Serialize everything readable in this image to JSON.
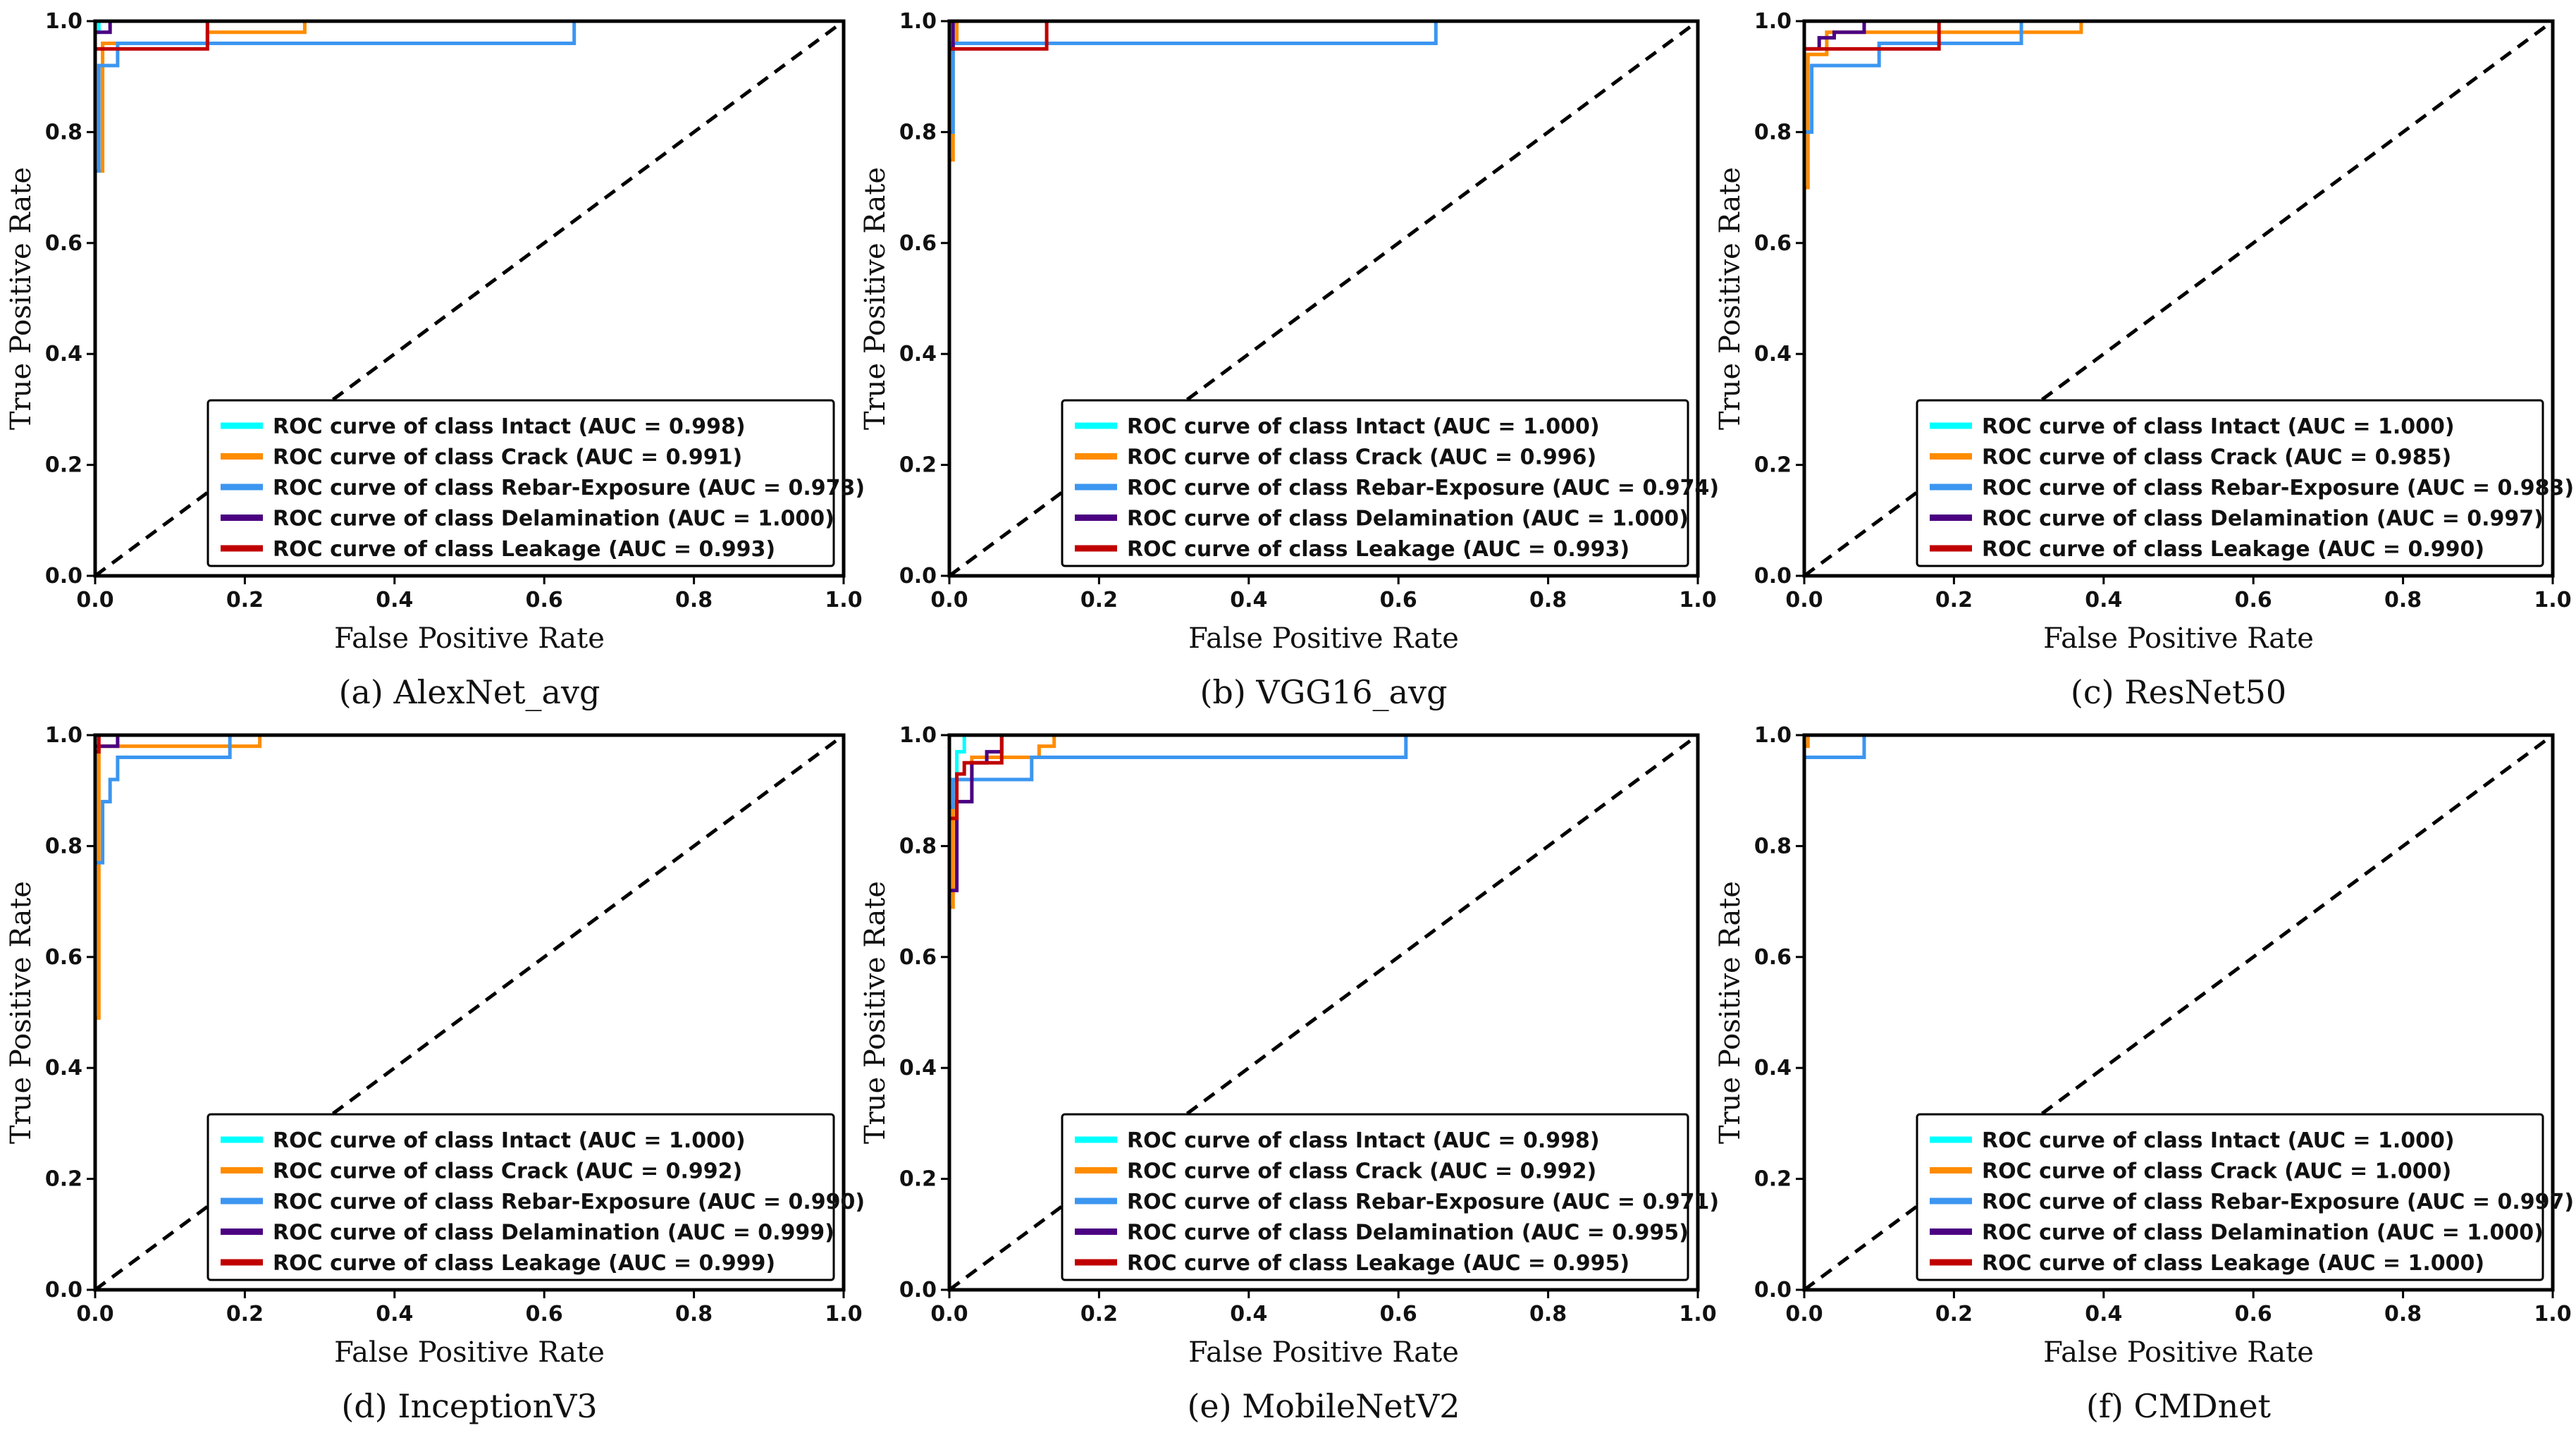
{
  "figure": {
    "class_colors": {
      "Intact": "#00FFFF",
      "Crack": "#FF8C00",
      "Rebar-Exposure": "#3C96F0",
      "Delamination": "#4B0082",
      "Leakage": "#C00000"
    },
    "legend_prefix": "ROC curve of class",
    "chance_line": {
      "color": "#000000",
      "style": "dashed",
      "x": [
        0,
        1
      ],
      "y": [
        0,
        1
      ]
    }
  },
  "chart_data": [
    {
      "type": "line",
      "caption": "(a) AlexNet_avg",
      "xlabel": "False Positive Rate",
      "ylabel": "True Positive Rate",
      "xlim": [
        0,
        1
      ],
      "ylim": [
        0,
        1
      ],
      "xticks": [
        "0.0",
        "0.2",
        "0.4",
        "0.6",
        "0.8",
        "1.0"
      ],
      "yticks": [
        "0.0",
        "0.2",
        "0.4",
        "0.6",
        "0.8",
        "1.0"
      ],
      "legend_position": "lower-right",
      "series": [
        {
          "name": "ROC curve of class Intact (AUC = 0.998)",
          "class": "Intact",
          "x": [
            0,
            0,
            0.005,
            0.005,
            1
          ],
          "y": [
            0,
            0.98,
            0.98,
            1,
            1
          ]
        },
        {
          "name": "ROC curve of class Crack (AUC = 0.991)",
          "class": "Crack",
          "x": [
            0,
            0,
            0.01,
            0.01,
            0.15,
            0.15,
            0.28,
            0.28,
            1
          ],
          "y": [
            0,
            0.73,
            0.73,
            0.96,
            0.96,
            0.98,
            0.98,
            1,
            1
          ]
        },
        {
          "name": "ROC curve of class Rebar-Exposure (AUC = 0.973)",
          "class": "Rebar-Exposure",
          "x": [
            0,
            0,
            0.005,
            0.005,
            0.03,
            0.03,
            0.64,
            0.64,
            1
          ],
          "y": [
            0,
            0.73,
            0.73,
            0.92,
            0.92,
            0.96,
            0.96,
            1,
            1
          ]
        },
        {
          "name": "ROC curve of class Delamination (AUC = 1.000)",
          "class": "Delamination",
          "x": [
            0,
            0,
            0.02,
            0.02,
            1
          ],
          "y": [
            0,
            0.98,
            0.98,
            1,
            1
          ]
        },
        {
          "name": "ROC curve of class Leakage (AUC = 0.993)",
          "class": "Leakage",
          "x": [
            0,
            0,
            0.15,
            0.15,
            1
          ],
          "y": [
            0,
            0.95,
            0.95,
            1,
            1
          ]
        }
      ]
    },
    {
      "type": "line",
      "caption": "(b) VGG16_avg",
      "xlabel": "False Positive Rate",
      "ylabel": "True Positive Rate",
      "xlim": [
        0,
        1
      ],
      "ylim": [
        0,
        1
      ],
      "xticks": [
        "0.0",
        "0.2",
        "0.4",
        "0.6",
        "0.8",
        "1.0"
      ],
      "yticks": [
        "0.0",
        "0.2",
        "0.4",
        "0.6",
        "0.8",
        "1.0"
      ],
      "legend_position": "lower-right",
      "series": [
        {
          "name": "ROC curve of class Intact (AUC = 1.000)",
          "class": "Intact",
          "x": [
            0,
            0,
            1
          ],
          "y": [
            0,
            1,
            1
          ]
        },
        {
          "name": "ROC curve of class Crack (AUC = 0.996)",
          "class": "Crack",
          "x": [
            0,
            0,
            0.005,
            0.005,
            0.01,
            0.01,
            1
          ],
          "y": [
            0,
            0.75,
            0.75,
            0.96,
            0.96,
            1,
            1
          ]
        },
        {
          "name": "ROC curve of class Rebar-Exposure (AUC = 0.974)",
          "class": "Rebar-Exposure",
          "x": [
            0,
            0,
            0.005,
            0.005,
            0.65,
            0.65,
            1
          ],
          "y": [
            0,
            0.8,
            0.8,
            0.96,
            0.96,
            1,
            1
          ]
        },
        {
          "name": "ROC curve of class Delamination (AUC = 1.000)",
          "class": "Delamination",
          "x": [
            0,
            0,
            0.005,
            0.005,
            0.065,
            0.065,
            1
          ],
          "y": [
            0,
            0.95,
            0.95,
            1,
            1,
            1,
            1
          ]
        },
        {
          "name": "ROC curve of class Leakage (AUC = 0.993)",
          "class": "Leakage",
          "x": [
            0,
            0,
            0.13,
            0.13,
            1
          ],
          "y": [
            0,
            0.95,
            0.95,
            1,
            1
          ]
        }
      ]
    },
    {
      "type": "line",
      "caption": "(c) ResNet50",
      "xlabel": "False Positive Rate",
      "ylabel": "True Positive Rate",
      "xlim": [
        0,
        1
      ],
      "ylim": [
        0,
        1
      ],
      "xticks": [
        "0.0",
        "0.2",
        "0.4",
        "0.6",
        "0.8",
        "1.0"
      ],
      "yticks": [
        "0.0",
        "0.2",
        "0.4",
        "0.6",
        "0.8",
        "1.0"
      ],
      "legend_position": "lower-right",
      "series": [
        {
          "name": "ROC curve of class Intact (AUC = 1.000)",
          "class": "Intact",
          "x": [
            0,
            0,
            1
          ],
          "y": [
            0,
            1,
            1
          ]
        },
        {
          "name": "ROC curve of class Crack (AUC = 0.985)",
          "class": "Crack",
          "x": [
            0,
            0,
            0.005,
            0.005,
            0.03,
            0.03,
            0.37,
            0.37,
            1
          ],
          "y": [
            0,
            0.7,
            0.7,
            0.94,
            0.94,
            0.98,
            0.98,
            1,
            1
          ]
        },
        {
          "name": "ROC curve of class Rebar-Exposure (AUC = 0.983)",
          "class": "Rebar-Exposure",
          "x": [
            0,
            0,
            0.01,
            0.01,
            0.1,
            0.1,
            0.29,
            0.29,
            1
          ],
          "y": [
            0,
            0.8,
            0.8,
            0.92,
            0.92,
            0.96,
            0.96,
            1,
            1
          ]
        },
        {
          "name": "ROC curve of class Delamination (AUC = 0.997)",
          "class": "Delamination",
          "x": [
            0,
            0,
            0.02,
            0.02,
            0.04,
            0.04,
            0.08,
            0.08,
            1
          ],
          "y": [
            0,
            0.95,
            0.95,
            0.97,
            0.97,
            0.98,
            0.98,
            1,
            1
          ]
        },
        {
          "name": "ROC curve of class Leakage (AUC = 0.990)",
          "class": "Leakage",
          "x": [
            0,
            0,
            0.18,
            0.18,
            1
          ],
          "y": [
            0,
            0.95,
            0.95,
            1,
            1
          ]
        }
      ]
    },
    {
      "type": "line",
      "caption": "(d) InceptionV3",
      "xlabel": "False Positive Rate",
      "ylabel": "True Positive Rate",
      "xlim": [
        0,
        1
      ],
      "ylim": [
        0,
        1
      ],
      "xticks": [
        "0.0",
        "0.2",
        "0.4",
        "0.6",
        "0.8",
        "1.0"
      ],
      "yticks": [
        "0.0",
        "0.2",
        "0.4",
        "0.6",
        "0.8",
        "1.0"
      ],
      "legend_position": "lower-right",
      "series": [
        {
          "name": "ROC curve of class Intact (AUC = 1.000)",
          "class": "Intact",
          "x": [
            0,
            0,
            1
          ],
          "y": [
            0,
            1,
            1
          ]
        },
        {
          "name": "ROC curve of class Crack (AUC = 0.992)",
          "class": "Crack",
          "x": [
            0,
            0,
            0.005,
            0.005,
            0.22,
            0.22,
            1
          ],
          "y": [
            0,
            0.49,
            0.49,
            0.98,
            0.98,
            1,
            1
          ]
        },
        {
          "name": "ROC curve of class Rebar-Exposure (AUC = 0.990)",
          "class": "Rebar-Exposure",
          "x": [
            0,
            0,
            0.01,
            0.01,
            0.02,
            0.02,
            0.03,
            0.03,
            0.18,
            0.18,
            1
          ],
          "y": [
            0,
            0.77,
            0.77,
            0.88,
            0.88,
            0.92,
            0.92,
            0.96,
            0.96,
            1,
            1
          ]
        },
        {
          "name": "ROC curve of class Delamination (AUC = 0.999)",
          "class": "Delamination",
          "x": [
            0,
            0,
            0.03,
            0.03,
            1
          ],
          "y": [
            0,
            0.98,
            0.98,
            1,
            1
          ]
        },
        {
          "name": "ROC curve of class Leakage (AUC = 0.999)",
          "class": "Leakage",
          "x": [
            0,
            0,
            0.005,
            0.005,
            1
          ],
          "y": [
            0,
            0.97,
            0.97,
            1,
            1
          ]
        }
      ]
    },
    {
      "type": "line",
      "caption": "(e) MobileNetV2",
      "xlabel": "False Positive Rate",
      "ylabel": "True Positive Rate",
      "xlim": [
        0,
        1
      ],
      "ylim": [
        0,
        1
      ],
      "xticks": [
        "0.0",
        "0.2",
        "0.4",
        "0.6",
        "0.8",
        "1.0"
      ],
      "yticks": [
        "0.0",
        "0.2",
        "0.4",
        "0.6",
        "0.8",
        "1.0"
      ],
      "legend_position": "lower-right",
      "series": [
        {
          "name": "ROC curve of class Intact (AUC = 0.998)",
          "class": "Intact",
          "x": [
            0,
            0,
            0.01,
            0.01,
            0.02,
            0.02,
            1
          ],
          "y": [
            0,
            0.92,
            0.92,
            0.97,
            0.97,
            1,
            1
          ]
        },
        {
          "name": "ROC curve of class Crack (AUC = 0.992)",
          "class": "Crack",
          "x": [
            0,
            0,
            0.005,
            0.005,
            0.03,
            0.03,
            0.12,
            0.12,
            0.14,
            0.14,
            1
          ],
          "y": [
            0,
            0.69,
            0.69,
            0.92,
            0.92,
            0.96,
            0.96,
            0.98,
            0.98,
            1,
            1
          ]
        },
        {
          "name": "ROC curve of class Rebar-Exposure (AUC = 0.971)",
          "class": "Rebar-Exposure",
          "x": [
            0,
            0,
            0.005,
            0.005,
            0.11,
            0.11,
            0.61,
            0.61,
            1
          ],
          "y": [
            0,
            0.87,
            0.87,
            0.92,
            0.92,
            0.96,
            0.96,
            1,
            1
          ]
        },
        {
          "name": "ROC curve of class Delamination (AUC = 0.995)",
          "class": "Delamination",
          "x": [
            0,
            0,
            0.01,
            0.01,
            0.03,
            0.03,
            0.05,
            0.05,
            0.07,
            0.07,
            1
          ],
          "y": [
            0,
            0.72,
            0.72,
            0.88,
            0.88,
            0.95,
            0.95,
            0.97,
            0.97,
            1,
            1
          ]
        },
        {
          "name": "ROC curve of class Leakage (AUC = 0.995)",
          "class": "Leakage",
          "x": [
            0,
            0,
            0.01,
            0.01,
            0.02,
            0.02,
            0.07,
            0.07,
            1
          ],
          "y": [
            0,
            0.85,
            0.85,
            0.93,
            0.93,
            0.95,
            0.95,
            1,
            1
          ]
        }
      ]
    },
    {
      "type": "line",
      "caption": "(f) CMDnet",
      "xlabel": "False Positive Rate",
      "ylabel": "True Positive Rate",
      "xlim": [
        0,
        1
      ],
      "ylim": [
        0,
        1
      ],
      "xticks": [
        "0.0",
        "0.2",
        "0.4",
        "0.6",
        "0.8",
        "1.0"
      ],
      "yticks": [
        "0.0",
        "0.2",
        "0.4",
        "0.6",
        "0.8",
        "1.0"
      ],
      "legend_position": "lower-right",
      "series": [
        {
          "name": "ROC curve of class Intact (AUC = 1.000)",
          "class": "Intact",
          "x": [
            0,
            0,
            1
          ],
          "y": [
            0,
            1,
            1
          ]
        },
        {
          "name": "ROC curve of class Crack (AUC = 1.000)",
          "class": "Crack",
          "x": [
            0,
            0,
            0.005,
            0.005,
            1
          ],
          "y": [
            0,
            0.98,
            0.98,
            1,
            1
          ]
        },
        {
          "name": "ROC curve of class Rebar-Exposure (AUC = 0.997)",
          "class": "Rebar-Exposure",
          "x": [
            0,
            0,
            0.08,
            0.08,
            1
          ],
          "y": [
            0,
            0.96,
            0.96,
            1,
            1
          ]
        },
        {
          "name": "ROC curve of class Delamination (AUC = 1.000)",
          "class": "Delamination",
          "x": [
            0,
            0,
            1
          ],
          "y": [
            0,
            1,
            1
          ]
        },
        {
          "name": "ROC curve of class Leakage (AUC = 1.000)",
          "class": "Leakage",
          "x": [
            0,
            0,
            1
          ],
          "y": [
            0,
            1,
            1
          ]
        }
      ]
    }
  ]
}
